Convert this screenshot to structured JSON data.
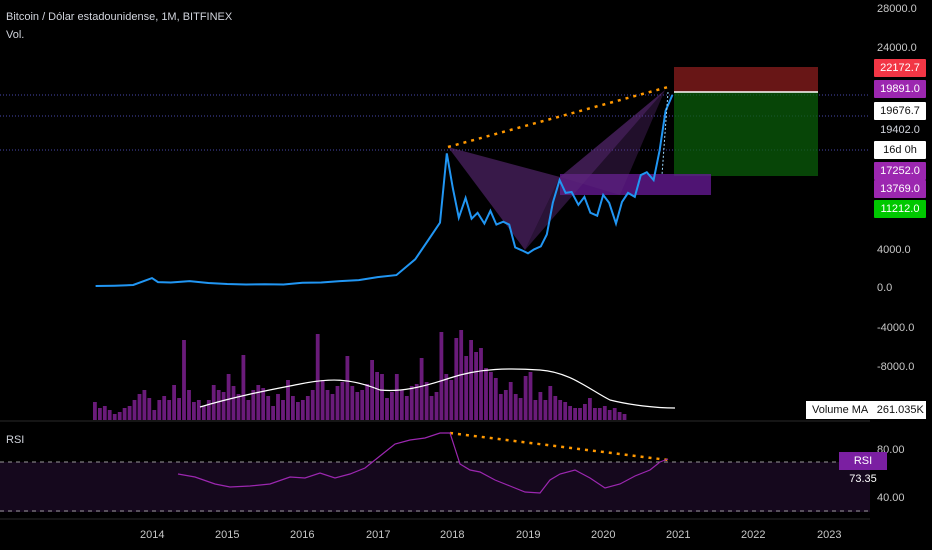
{
  "header": {
    "title": "Bitcoin / Dólar estadounidense, 1M, BITFINEX",
    "volume_label": "Vol.",
    "rsi_label": "RSI"
  },
  "price_axis_labels": [
    "28000.0",
    "24000.0",
    "4000.0",
    "0.0",
    "-4000.0",
    "-8000.0"
  ],
  "rsi_axis_labels": [
    "80.00",
    "40.00"
  ],
  "x_axis_labels": [
    "2014",
    "2015",
    "2016",
    "2017",
    "2018",
    "2019",
    "2020",
    "2021",
    "2022",
    "2023"
  ],
  "price_tags": [
    {
      "text": "22172.7",
      "bg": "#f23645",
      "fg": "#ffffff"
    },
    {
      "text": "19891.0",
      "bg": "#9c27b0",
      "fg": "#ffffff"
    },
    {
      "text": "19676.7",
      "bg": "#ffffff",
      "fg": "#111111"
    },
    {
      "text": "19402.0",
      "bg": "#000000",
      "fg": "#d1d4dc"
    },
    {
      "text": "16d 0h",
      "bg": "#ffffff",
      "fg": "#111111"
    },
    {
      "text": "17252.0",
      "bg": "#9c27b0",
      "fg": "#ffffff"
    },
    {
      "text": "13769.0",
      "bg": "#9c27b0",
      "fg": "#ffffff"
    },
    {
      "text": "11212.0",
      "bg": "#00c800",
      "fg": "#ffffff"
    }
  ],
  "volume_ma": {
    "label": "Volume MA",
    "value": "261.035K"
  },
  "rsi_value": {
    "label": "RSI",
    "value": "73.35"
  },
  "colors": {
    "price_line": "#2196f3",
    "volume_bar": "#6a1b7a",
    "volume_ma": "#ffffff",
    "rsi_line": "#9c27b0",
    "trendline": "#ff9800",
    "pattern_fill": "#5e2a7a",
    "zone_fill": "#6a1b9a",
    "stop_zone": "#8b1e1e",
    "target_zone": "#0a5c0a"
  },
  "chart_data": {
    "type": "line",
    "series": [
      {
        "x": [
          2013.25,
          2013.5,
          2013.75,
          2014.0,
          2014.08,
          2014.25,
          2014.5,
          2014.75,
          2015.0,
          2015.25,
          2015.5,
          2015.75,
          2016.0,
          2016.25,
          2016.5,
          2016.75,
          2017.0,
          2017.25,
          2017.5,
          2017.67,
          2017.83,
          2017.92,
          2018.0,
          2018.08,
          2018.17,
          2018.25,
          2018.33,
          2018.42,
          2018.5,
          2018.58,
          2018.67,
          2018.75,
          2018.83,
          2018.92,
          2019.0,
          2019.08,
          2019.17,
          2019.25,
          2019.33,
          2019.42,
          2019.5,
          2019.58,
          2019.67,
          2019.75,
          2019.83,
          2019.92,
          2020.0,
          2020.08,
          2020.17,
          2020.25,
          2020.33,
          2020.42,
          2020.5,
          2020.58,
          2020.67,
          2020.75,
          2020.83,
          2020.92
        ],
        "values": [
          100,
          130,
          200,
          900,
          500,
          450,
          600,
          400,
          300,
          250,
          280,
          250,
          430,
          450,
          600,
          700,
          1000,
          1200,
          2800,
          4700,
          6500,
          13500,
          10000,
          7000,
          9000,
          6900,
          7500,
          6400,
          7700,
          6300,
          6600,
          6300,
          4000,
          3700,
          3400,
          3800,
          4100,
          5300,
          8500,
          10800,
          9500,
          9600,
          8300,
          9100,
          7500,
          7200,
          9300,
          8500,
          6400,
          8600,
          9500,
          9100,
          11300,
          11600,
          10800,
          13800,
          17800,
          19400
        ]
      }
    ],
    "ylim": [
      -10000,
      30000
    ]
  }
}
